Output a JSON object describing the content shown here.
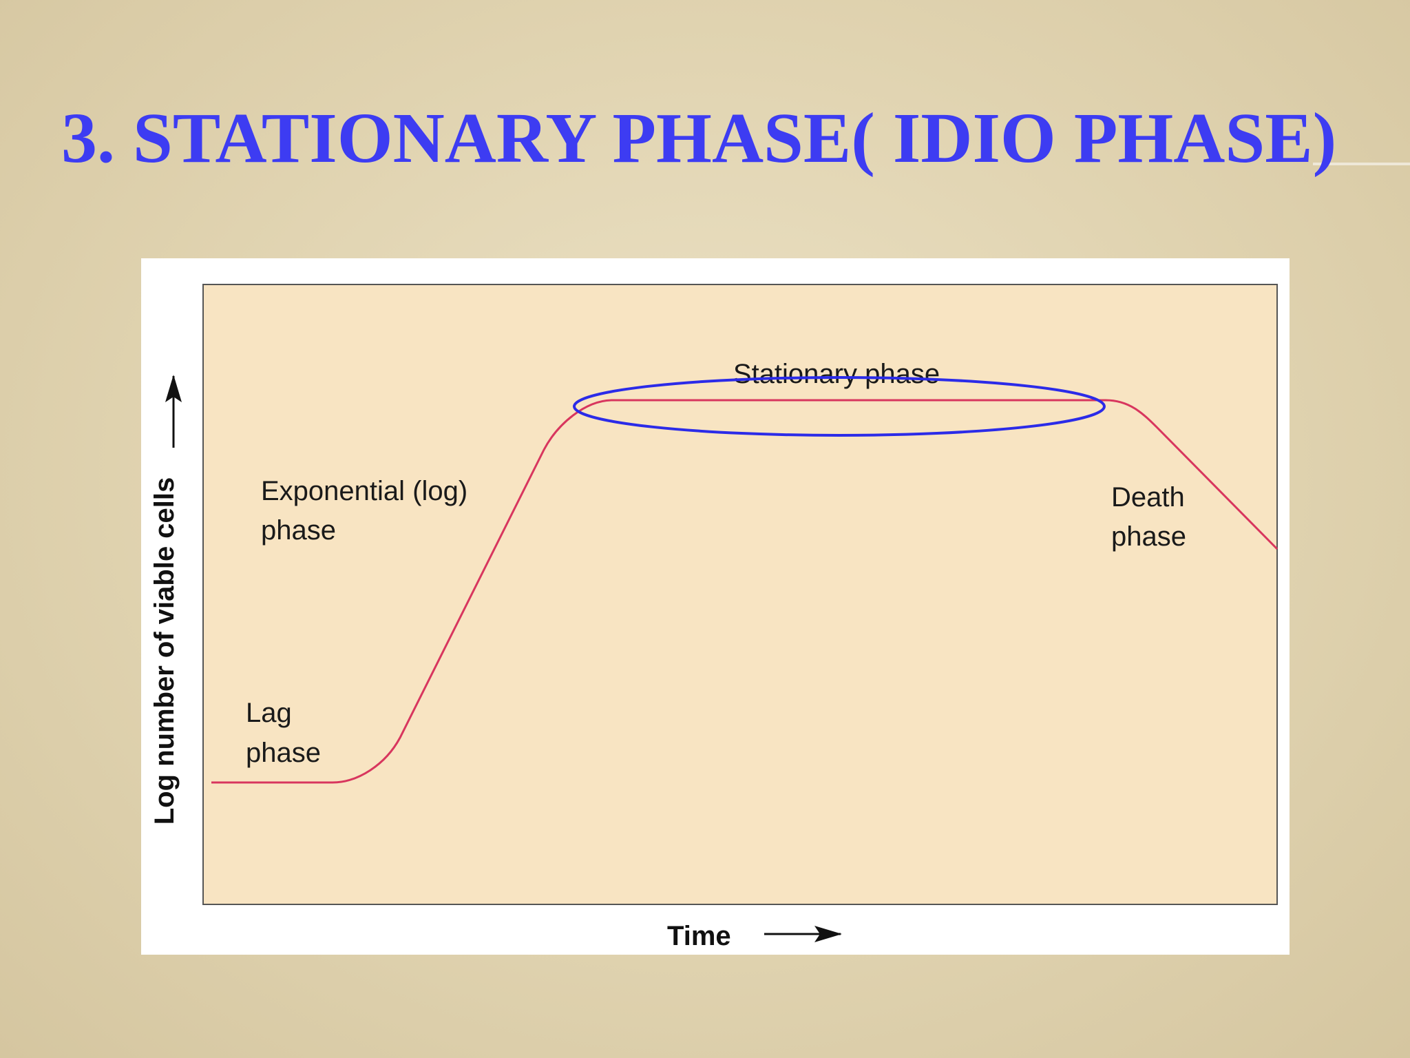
{
  "title": "3. STATIONARY PHASE( IDIO PHASE)",
  "y_label": "Log number of viable cells",
  "x_label": "Time",
  "labels": {
    "stationary": [
      "Stationary phase"
    ],
    "exponential": [
      "Exponential (log)",
      "phase"
    ],
    "lag": [
      "Lag",
      "phase"
    ],
    "death": [
      "Death",
      "phase"
    ]
  }
}
